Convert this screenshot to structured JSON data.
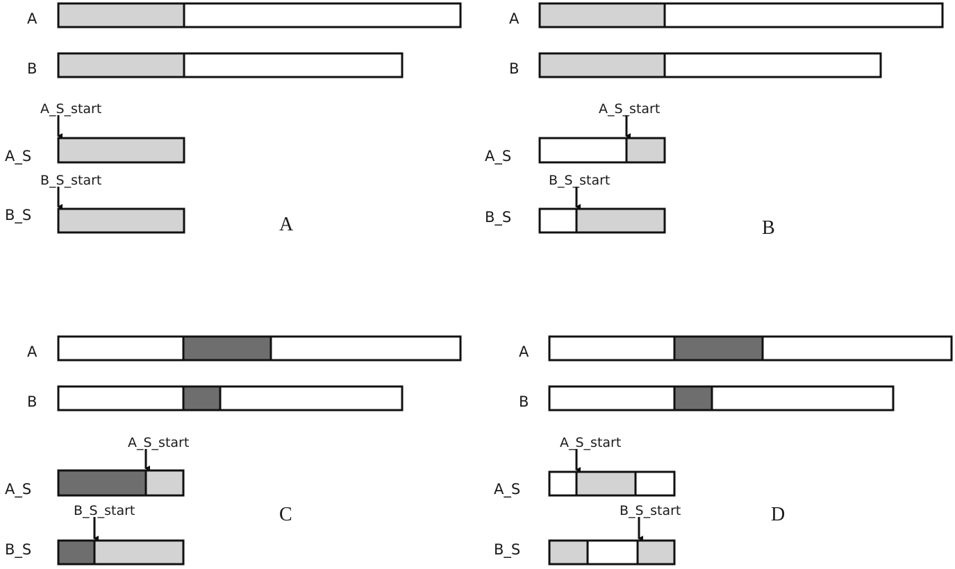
{
  "colors": {
    "background": "#ffffff",
    "outline": "#111111",
    "light_fill": "#d3d3d3",
    "dark_fill": "#6e6e6e",
    "empty_fill": "#ffffff"
  },
  "panels": [
    {
      "letter": "A",
      "row_labels": {
        "a": "A",
        "b": "B",
        "as": "A_S",
        "bs": "B_S"
      },
      "pointers": {
        "as": "A_S_start",
        "bs": "B_S_start"
      }
    },
    {
      "letter": "B",
      "row_labels": {
        "a": "A",
        "b": "B",
        "as": "A_S",
        "bs": "B_S"
      },
      "pointers": {
        "as": "A_S_start",
        "bs": "B_S_start"
      }
    },
    {
      "letter": "C",
      "row_labels": {
        "a": "A",
        "b": "B",
        "as": "A_S",
        "bs": "B_S"
      },
      "pointers": {
        "as": "A_S_start",
        "bs": "B_S_start"
      }
    },
    {
      "letter": "D",
      "row_labels": {
        "a": "A",
        "b": "B",
        "as": "A_S",
        "bs": "B_S"
      },
      "pointers": {
        "as": "A_S_start",
        "bs": "B_S_start"
      }
    }
  ]
}
